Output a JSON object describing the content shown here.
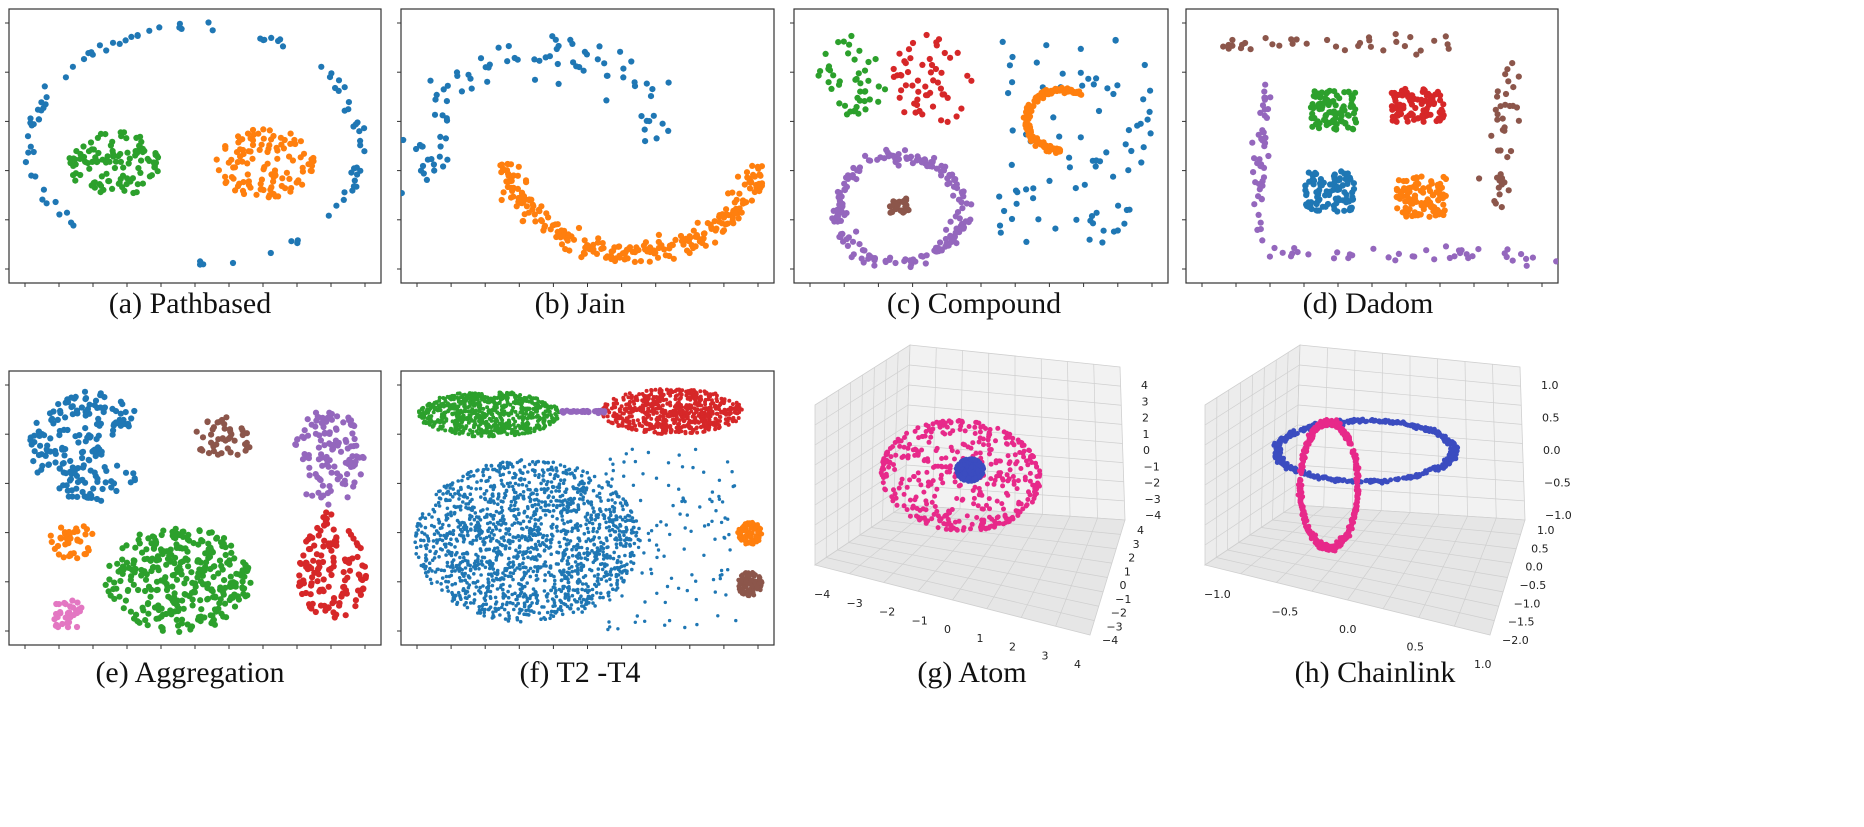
{
  "figure": {
    "captions": [
      "(a) Pathbased",
      "(b) Jain",
      "(c) Compound",
      "(d) Dadom",
      "(e) Aggregation",
      "(f) T2 -T4",
      "(g) Atom",
      "(h) Chainlink"
    ]
  },
  "chart_data": [
    {
      "type": "scatter",
      "caption": "(a) Pathbased",
      "xlim": [
        0,
        1
      ],
      "ylim": [
        0,
        1
      ],
      "grid": false,
      "colors": {
        "c1": "#1f77b4",
        "c2": "#2ca02c",
        "c3": "#ff7f0e"
      },
      "shapes": [
        {
          "kind": "ring",
          "color": "#1f77b4",
          "cx": 0.5,
          "cy": 0.5,
          "rx": 0.47,
          "ry": 0.47,
          "n": 95,
          "thick": 0.02,
          "angle_from": -1.57,
          "angle_to": 3.9
        },
        {
          "kind": "blob",
          "color": "#2ca02c",
          "cx": 0.27,
          "cy": 0.43,
          "rx": 0.13,
          "ry": 0.13,
          "n": 110
        },
        {
          "kind": "blob",
          "color": "#ff7f0e",
          "cx": 0.7,
          "cy": 0.43,
          "rx": 0.14,
          "ry": 0.14,
          "n": 115
        }
      ]
    },
    {
      "type": "scatter",
      "caption": "(b) Jain",
      "xlim": [
        0,
        1
      ],
      "ylim": [
        0,
        1
      ],
      "grid": false,
      "colors": {
        "c1": "#1f77b4",
        "c2": "#ff7f0e"
      },
      "shapes": [
        {
          "kind": "arc",
          "color": "#1f77b4",
          "cx": 0.38,
          "cy": 0.45,
          "rx": 0.33,
          "ry": 0.42,
          "a0": 3.4,
          "a1": 0.1,
          "n": 90,
          "thick": 0.1
        },
        {
          "kind": "arc",
          "color": "#ff7f0e",
          "cx": 0.63,
          "cy": 0.5,
          "rx": 0.36,
          "ry": 0.42,
          "a0": 3.3,
          "a1": 6.1,
          "n": 260,
          "thick": 0.05
        }
      ]
    },
    {
      "type": "scatter",
      "caption": "(c) Compound",
      "xlim": [
        0,
        1
      ],
      "ylim": [
        0,
        1
      ],
      "grid": false,
      "colors": {
        "c1": "#2ca02c",
        "c2": "#d62728",
        "c3": "#1f77b4",
        "c4": "#ff7f0e",
        "c5": "#9467bd",
        "c6": "#8c564b"
      },
      "shapes": [
        {
          "kind": "blob",
          "color": "#2ca02c",
          "cx": 0.14,
          "cy": 0.78,
          "rx": 0.1,
          "ry": 0.16,
          "n": 45
        },
        {
          "kind": "blob",
          "color": "#d62728",
          "cx": 0.36,
          "cy": 0.76,
          "rx": 0.12,
          "ry": 0.18,
          "n": 55
        },
        {
          "kind": "grid",
          "color": "#1f77b4",
          "x0": 0.55,
          "x1": 0.98,
          "y0": 0.12,
          "y1": 0.93,
          "n": 85
        },
        {
          "kind": "arc",
          "color": "#ff7f0e",
          "cx": 0.73,
          "cy": 0.6,
          "rx": 0.1,
          "ry": 0.12,
          "a0": 1.0,
          "a1": 4.7,
          "n": 140,
          "thick": 0.05
        },
        {
          "kind": "ring",
          "color": "#9467bd",
          "cx": 0.27,
          "cy": 0.25,
          "rx": 0.18,
          "ry": 0.21,
          "n": 190,
          "thick": 0.06,
          "angle_from": 0,
          "angle_to": 6.283
        },
        {
          "kind": "blob",
          "color": "#8c564b",
          "cx": 0.27,
          "cy": 0.26,
          "rx": 0.035,
          "ry": 0.04,
          "n": 28
        }
      ]
    },
    {
      "type": "scatter",
      "caption": "(d) Dadom",
      "xlim": [
        0,
        1
      ],
      "ylim": [
        0,
        1
      ],
      "grid": false,
      "colors": {
        "c1": "#8c564b",
        "c2": "#2ca02c",
        "c3": "#d62728",
        "c4": "#1f77b4",
        "c5": "#ff7f0e",
        "c6": "#9467bd"
      },
      "shapes": [
        {
          "kind": "line",
          "color": "#8c564b",
          "x0": 0.05,
          "x1": 0.75,
          "y0": 0.9,
          "y1": 0.9,
          "n": 35,
          "jitter": 0.04
        },
        {
          "kind": "line",
          "color": "#8c564b",
          "x0": 0.85,
          "x1": 0.89,
          "y0": 0.25,
          "y1": 0.82,
          "n": 40,
          "jitter": 0.035
        },
        {
          "kind": "square",
          "color": "#2ca02c",
          "cx": 0.39,
          "cy": 0.64,
          "rx": 0.065,
          "ry": 0.08,
          "n": 90
        },
        {
          "kind": "square",
          "color": "#d62728",
          "cx": 0.63,
          "cy": 0.66,
          "rx": 0.075,
          "ry": 0.065,
          "n": 90
        },
        {
          "kind": "square",
          "color": "#1f77b4",
          "cx": 0.38,
          "cy": 0.32,
          "rx": 0.07,
          "ry": 0.08,
          "n": 100
        },
        {
          "kind": "square",
          "color": "#ff7f0e",
          "cx": 0.64,
          "cy": 0.3,
          "rx": 0.07,
          "ry": 0.08,
          "n": 100
        },
        {
          "kind": "line",
          "color": "#9467bd",
          "x0": 0.17,
          "x1": 0.2,
          "y0": 0.12,
          "y1": 0.75,
          "n": 45,
          "jitter": 0.02
        },
        {
          "kind": "line",
          "color": "#9467bd",
          "x0": 0.2,
          "x1": 0.99,
          "y0": 0.07,
          "y1": 0.07,
          "n": 40,
          "jitter": 0.035
        }
      ]
    },
    {
      "type": "scatter",
      "caption": "(e) Aggregation",
      "xlim": [
        0,
        1
      ],
      "ylim": [
        0,
        1
      ],
      "grid": false,
      "colors": {
        "c1": "#1f77b4",
        "c2": "#8c564b",
        "c3": "#9467bd",
        "c4": "#ff7f0e",
        "c5": "#2ca02c",
        "c6": "#d62728",
        "c7": "#e377c2"
      },
      "shapes": [
        {
          "kind": "pacman",
          "color": "#1f77b4",
          "cx": 0.2,
          "cy": 0.74,
          "rx": 0.17,
          "ry": 0.22,
          "n": 190
        },
        {
          "kind": "blob",
          "color": "#8c564b",
          "cx": 0.58,
          "cy": 0.78,
          "rx": 0.09,
          "ry": 0.08,
          "n": 45
        },
        {
          "kind": "blob",
          "color": "#9467bd",
          "cx": 0.88,
          "cy": 0.7,
          "rx": 0.1,
          "ry": 0.19,
          "n": 120
        },
        {
          "kind": "line",
          "color": "#d62728",
          "x0": 0.87,
          "x1": 0.88,
          "y0": 0.42,
          "y1": 0.5,
          "n": 8,
          "jitter": 0.01
        },
        {
          "kind": "blob",
          "color": "#d62728",
          "cx": 0.89,
          "cy": 0.25,
          "rx": 0.1,
          "ry": 0.19,
          "n": 130
        },
        {
          "kind": "blob",
          "color": "#ff7f0e",
          "cx": 0.15,
          "cy": 0.37,
          "rx": 0.065,
          "ry": 0.07,
          "n": 38
        },
        {
          "kind": "blob",
          "color": "#2ca02c",
          "cx": 0.45,
          "cy": 0.22,
          "rx": 0.21,
          "ry": 0.21,
          "n": 330
        },
        {
          "kind": "blob",
          "color": "#e377c2",
          "cx": 0.14,
          "cy": 0.08,
          "rx": 0.055,
          "ry": 0.06,
          "n": 32
        }
      ]
    },
    {
      "type": "scatter",
      "caption": "(f) T2 -T4",
      "xlim": [
        0,
        1
      ],
      "ylim": [
        0,
        1
      ],
      "grid": false,
      "colors": {
        "c1": "#2ca02c",
        "c2": "#d62728",
        "c3": "#9467bd",
        "c4": "#1f77b4",
        "c5": "#ff7f0e",
        "c6": "#8c564b"
      },
      "shapes": [
        {
          "kind": "blob",
          "color": "#2ca02c",
          "cx": 0.22,
          "cy": 0.87,
          "rx": 0.2,
          "ry": 0.09,
          "n": 650,
          "size": 2.0
        },
        {
          "kind": "blob",
          "color": "#d62728",
          "cx": 0.74,
          "cy": 0.88,
          "rx": 0.2,
          "ry": 0.09,
          "n": 650,
          "size": 2.0
        },
        {
          "kind": "line",
          "color": "#9467bd",
          "x0": 0.42,
          "x1": 0.55,
          "y0": 0.88,
          "y1": 0.88,
          "n": 30,
          "jitter": 0.005
        },
        {
          "kind": "blob",
          "color": "#1f77b4",
          "cx": 0.33,
          "cy": 0.37,
          "rx": 0.32,
          "ry": 0.32,
          "n": 1600,
          "size": 1.8
        },
        {
          "kind": "grid",
          "color": "#1f77b4",
          "x0": 0.55,
          "x1": 0.93,
          "y0": 0.02,
          "y1": 0.74,
          "n": 120,
          "size": 1.7
        },
        {
          "kind": "blob",
          "color": "#ff7f0e",
          "cx": 0.96,
          "cy": 0.4,
          "rx": 0.035,
          "ry": 0.045,
          "n": 90,
          "size": 2.4
        },
        {
          "kind": "blob",
          "color": "#8c564b",
          "cx": 0.96,
          "cy": 0.2,
          "rx": 0.035,
          "ry": 0.05,
          "n": 90,
          "size": 2.4
        }
      ]
    },
    {
      "type": "scatter3d",
      "caption": "(g) Atom",
      "ticks": {
        "z": [
          "4",
          "3",
          "2",
          "1",
          "0",
          "−1",
          "−2",
          "−3",
          "−4"
        ],
        "x": [
          "−4",
          "−3",
          "−2",
          "−1",
          "0",
          "1",
          "2",
          "3",
          "4"
        ],
        "y": [
          "4",
          "3",
          "2",
          "1",
          "0",
          "−1",
          "−2",
          "−3",
          "−4"
        ]
      },
      "colors": {
        "c1": "#e7298a",
        "c2": "#3b4cc0"
      },
      "shapes": [
        {
          "kind": "sphere",
          "color": "#e7298a",
          "cx": 0.46,
          "cy": 0.47,
          "rx": 0.36,
          "ry": 0.36,
          "n": 420,
          "size": 2.5
        },
        {
          "kind": "blob",
          "color": "#3b4cc0",
          "cx": 0.5,
          "cy": 0.5,
          "rx": 0.06,
          "ry": 0.06,
          "n": 500,
          "size": 2.5
        }
      ]
    },
    {
      "type": "scatter3d",
      "caption": "(h) Chainlink",
      "ticks": {
        "z": [
          "1.0",
          "0.5",
          "0.0",
          "−0.5",
          "−1.0"
        ],
        "x": [
          "−1.0",
          "−0.5",
          "0.0",
          "0.5",
          "1.0"
        ],
        "y": [
          "1.0",
          "0.5",
          "0.0",
          "−0.5",
          "−1.0",
          "−1.5",
          "−2.0"
        ]
      },
      "colors": {
        "c1": "#3b4cc0",
        "c2": "#e7298a"
      },
      "shapes": [
        {
          "kind": "ring",
          "color": "#3b4cc0",
          "cx": 0.5,
          "cy": 0.6,
          "rx": 0.37,
          "ry": 0.16,
          "n": 500,
          "thick": 0.025,
          "angle_from": 0,
          "angle_to": 6.283,
          "size": 2.5
        },
        {
          "kind": "ring",
          "color": "#e7298a",
          "cx": 0.35,
          "cy": 0.42,
          "rx": 0.12,
          "ry": 0.33,
          "n": 500,
          "thick": 0.03,
          "angle_from": 0,
          "angle_to": 6.283,
          "size": 2.5
        }
      ]
    }
  ]
}
